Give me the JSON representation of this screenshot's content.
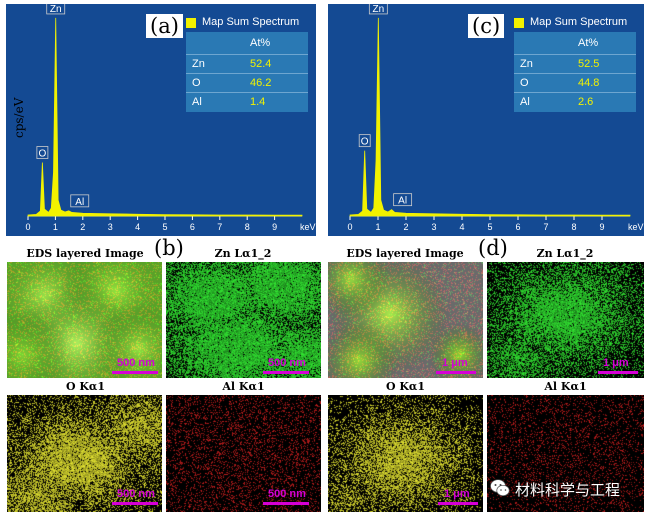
{
  "figure": {
    "panels": {
      "a": "(a)",
      "b": "(b)",
      "c": "(c)",
      "d": "(d)"
    },
    "image_titles": {
      "b_layered": "EDS layered Image",
      "b_zn": "Zn Lα1_2",
      "b_o": "O Kα1",
      "b_al": "Al Kα1",
      "d_layered": "EDS layered Image",
      "d_zn": "Zn Lα1_2",
      "d_o": "O Kα1",
      "d_al": "Al Kα1"
    },
    "scalebars": {
      "b_layered": "500 nm",
      "b_zn": "500 nm",
      "b_o": "500 nm",
      "b_al": "500 nm",
      "d_layered": "1 μm",
      "d_zn": "1 μm",
      "d_o": "1 μm"
    },
    "map_colors": {
      "zn": "#32e632",
      "o": "#e6e632",
      "al": "#c81e1e",
      "layered": "#7acc3a"
    },
    "watermark": "材料科学与工程"
  },
  "chart_data": [
    {
      "type": "line",
      "panel": "a",
      "legend": "Map Sum Spectrum",
      "legend_position": "top-right",
      "xlabel": "keV",
      "ylabel": "cps/eV",
      "xlim": [
        0,
        10
      ],
      "x_ticks": [
        "0",
        "1",
        "2",
        "3",
        "4",
        "5",
        "6",
        "7",
        "8",
        "9"
      ],
      "line_color": "#f2f200",
      "series": [
        {
          "x": [
            0.0,
            0.3,
            0.45,
            0.525,
            0.6,
            0.75,
            0.85,
            0.93,
            1.012,
            1.1,
            1.2,
            1.35,
            1.487,
            1.6,
            2.0,
            3.0,
            4.0,
            5.0,
            6.0,
            7.0,
            8.0,
            9.0,
            10.0
          ],
          "y": [
            0.5,
            0.8,
            2.5,
            27.0,
            3.5,
            1.8,
            4.0,
            22.0,
            100.0,
            8.0,
            3.0,
            2.0,
            2.6,
            1.8,
            1.4,
            1.1,
            0.9,
            0.7,
            0.6,
            0.5,
            0.5,
            0.4,
            0.4
          ]
        }
      ],
      "peak_labels": [
        {
          "label": "Zn",
          "x": 1.012
        },
        {
          "label": "O",
          "x": 0.525
        },
        {
          "label": "Al",
          "x": 1.487
        }
      ],
      "table": {
        "header": [
          "",
          "At%"
        ],
        "rows": [
          [
            "Zn",
            "52.4"
          ],
          [
            "O",
            "46.2"
          ],
          [
            "Al",
            "1.4"
          ]
        ]
      }
    },
    {
      "type": "line",
      "panel": "c",
      "legend": "Map Sum Spectrum",
      "legend_position": "top-right",
      "xlabel": "keV",
      "ylabel": "",
      "xlim": [
        0,
        10
      ],
      "x_ticks": [
        "0",
        "1",
        "2",
        "3",
        "4",
        "5",
        "6",
        "7",
        "8",
        "9"
      ],
      "line_color": "#f2f200",
      "series": [
        {
          "x": [
            0.0,
            0.3,
            0.45,
            0.525,
            0.6,
            0.75,
            0.85,
            0.93,
            1.012,
            1.1,
            1.2,
            1.35,
            1.487,
            1.6,
            2.0,
            3.0,
            4.0,
            5.0,
            6.0,
            7.0,
            8.0,
            9.0,
            10.0
          ],
          "y": [
            0.5,
            0.8,
            2.5,
            33.0,
            3.5,
            1.8,
            4.0,
            28.0,
            100.0,
            8.0,
            3.0,
            2.0,
            3.2,
            1.8,
            1.4,
            1.1,
            0.9,
            0.7,
            0.6,
            0.5,
            0.5,
            0.4,
            0.4
          ]
        }
      ],
      "peak_labels": [
        {
          "label": "Zn",
          "x": 1.012
        },
        {
          "label": "O",
          "x": 0.525
        },
        {
          "label": "Al",
          "x": 1.487
        }
      ],
      "table": {
        "header": [
          "",
          "At%"
        ],
        "rows": [
          [
            "Zn",
            "52.5"
          ],
          [
            "O",
            "44.8"
          ],
          [
            "Al",
            "2.6"
          ]
        ]
      }
    }
  ]
}
